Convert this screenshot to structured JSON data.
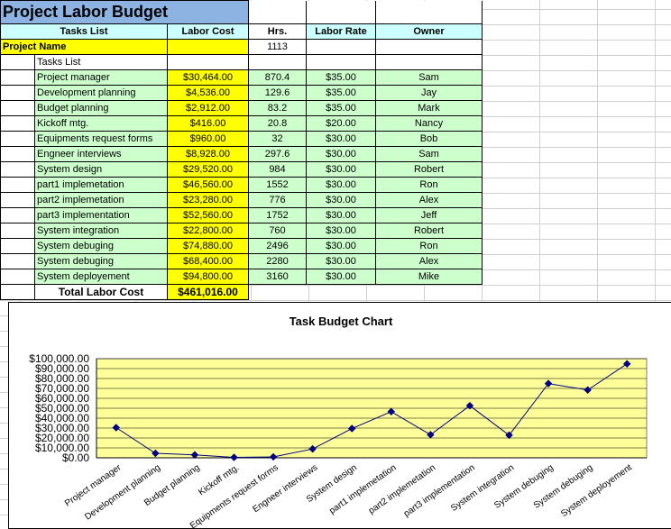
{
  "sheet": {
    "title": "Project Labor Budget",
    "headers": {
      "tasks": "Tasks List",
      "cost": "Labor Cost",
      "hrs": "Hrs.",
      "rate": "Labor Rate",
      "owner": "Owner"
    },
    "project_name_label": "Project Name",
    "project_hours": "1113",
    "tasks_list_label": "Tasks List",
    "rows": [
      {
        "task": "Project manager",
        "cost": "$30,464.00",
        "hrs": "870.4",
        "rate": "$35.00",
        "owner": "Sam"
      },
      {
        "task": "Development planning",
        "cost": "$4,536.00",
        "hrs": "129.6",
        "rate": "$35.00",
        "owner": "Jay"
      },
      {
        "task": "Budget planning",
        "cost": "$2,912.00",
        "hrs": "83.2",
        "rate": "$35.00",
        "owner": "Mark"
      },
      {
        "task": "Kickoff mtg.",
        "cost": "$416.00",
        "hrs": "20.8",
        "rate": "$20.00",
        "owner": "Nancy"
      },
      {
        "task": "Equipments request forms",
        "cost": "$960.00",
        "hrs": "32",
        "rate": "$30.00",
        "owner": "Bob"
      },
      {
        "task": "Engneer interviews",
        "cost": "$8,928.00",
        "hrs": "297.6",
        "rate": "$30.00",
        "owner": "Sam"
      },
      {
        "task": "System design",
        "cost": "$29,520.00",
        "hrs": "984",
        "rate": "$30.00",
        "owner": "Robert"
      },
      {
        "task": "part1 implemetation",
        "cost": "$46,560.00",
        "hrs": "1552",
        "rate": "$30.00",
        "owner": "Ron"
      },
      {
        "task": "part2 implemetation",
        "cost": "$23,280.00",
        "hrs": "776",
        "rate": "$30.00",
        "owner": "Alex"
      },
      {
        "task": "part3 implementation",
        "cost": "$52,560.00",
        "hrs": "1752",
        "rate": "$30.00",
        "owner": "Jeff"
      },
      {
        "task": "System integration",
        "cost": "$22,800.00",
        "hrs": "760",
        "rate": "$30.00",
        "owner": "Robert"
      },
      {
        "task": "System debuging",
        "cost": "$74,880.00",
        "hrs": "2496",
        "rate": "$30.00",
        "owner": "Ron"
      },
      {
        "task": "System debuging",
        "cost": "$68,400.00",
        "hrs": "2280",
        "rate": "$30.00",
        "owner": "Alex"
      },
      {
        "task": "System deployement",
        "cost": "$94,800.00",
        "hrs": "3160",
        "rate": "$30.00",
        "owner": "Mike"
      }
    ],
    "total_label": "Total Labor Cost",
    "total_value": "$461,016.00"
  },
  "chart_data": {
    "type": "line",
    "title": "Task Budget Chart",
    "categories": [
      "Project manager",
      "Development planning",
      "Budget planning",
      "Kickoff mtg.",
      "Equipments request forms",
      "Engneer interviews",
      "System design",
      "part1 implemetation",
      "part2 implemetation",
      "part3 implementation",
      "System integration",
      "System debuging",
      "System debuging",
      "System deployement"
    ],
    "series": [
      {
        "values": [
          30464,
          4536,
          2912,
          416,
          960,
          8928,
          29520,
          46560,
          23280,
          52560,
          22800,
          74880,
          68400,
          94800
        ]
      }
    ],
    "ylim": [
      0,
      100000
    ],
    "yticks": [
      "$0.00",
      "$10,000.00",
      "$20,000.00",
      "$30,000.00",
      "$40,000.00",
      "$50,000.00",
      "$60,000.00",
      "$70,000.00",
      "$80,000.00",
      "$90,000.00",
      "$100,000.00"
    ],
    "grid": true,
    "legend": "none",
    "colors": {
      "plot_bg": "#ffff99",
      "line": "#000080",
      "grid": "#000000"
    }
  }
}
